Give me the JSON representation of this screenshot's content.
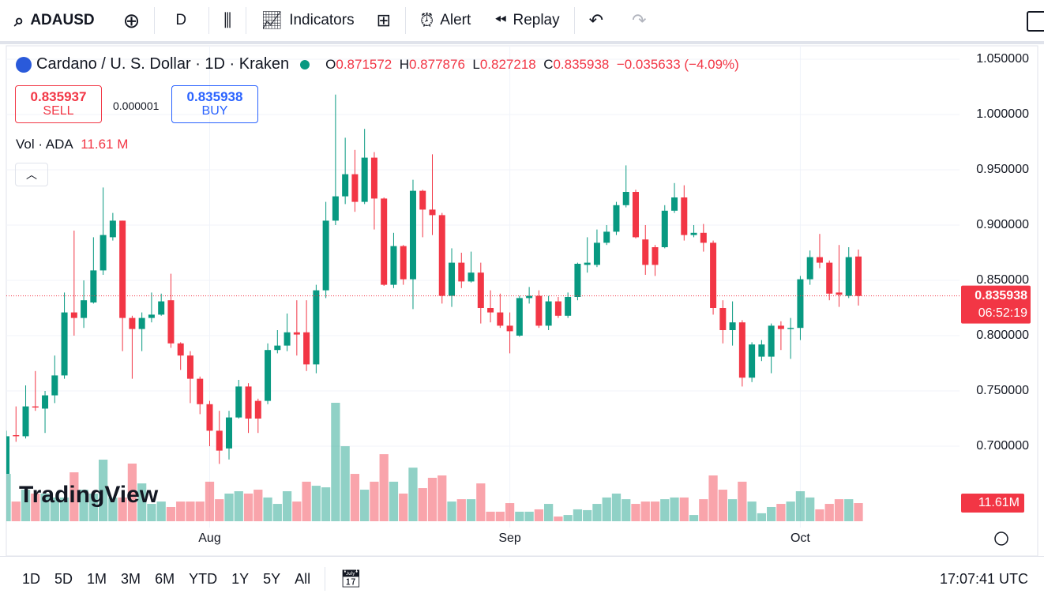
{
  "toolbar": {
    "symbol": "ADAUSD",
    "interval": "D",
    "indicators": "Indicators",
    "alert": "Alert",
    "replay": "Replay"
  },
  "legend": {
    "title": "Cardano / U. S. Dollar · 1D · Kraken",
    "o_label": "O",
    "h_label": "H",
    "l_label": "L",
    "c_label": "C",
    "change": "−0.035633 (−4.09%)",
    "sell_price": "0.835937",
    "sell": "SELL",
    "spread": "0.000001",
    "buy_price": "0.835938",
    "buy": "BUY",
    "volume_label": "Vol · ADA",
    "volume_value": "11.61 M"
  },
  "watermark": "TradingView",
  "chart_data": {
    "type": "candlestick",
    "categories": [
      null,
      null,
      null,
      null,
      null,
      null,
      null,
      null,
      null,
      null,
      null,
      null,
      null,
      null,
      null,
      null,
      null,
      null,
      null,
      null,
      null,
      "Aug",
      null,
      null,
      null,
      null,
      null,
      null,
      null,
      null,
      null,
      null,
      null,
      null,
      null,
      null,
      null,
      null,
      null,
      null,
      null,
      null,
      null,
      null,
      null,
      null,
      null,
      null,
      null,
      null,
      null,
      null,
      "Sep",
      null,
      null,
      null,
      null,
      null,
      null,
      null,
      null,
      null,
      null,
      null,
      null,
      null,
      null,
      null,
      null,
      null,
      null,
      null,
      null,
      null,
      null,
      null,
      null,
      null,
      null,
      null,
      null,
      null,
      "Oct",
      null,
      null,
      null,
      null,
      null,
      null
    ],
    "open": [
      0.675,
      0.71,
      0.709,
      0.736,
      0.734,
      0.746,
      0.764,
      0.821,
      0.816,
      0.83,
      0.859,
      0.889,
      0.904,
      0.816,
      0.806,
      0.816,
      0.819,
      0.832,
      0.793,
      0.782,
      0.761,
      0.738,
      0.714,
      0.698,
      0.726,
      0.754,
      0.741,
      0.741,
      0.787,
      0.791,
      0.803,
      0.803,
      0.774,
      0.841,
      0.904,
      0.926,
      0.946,
      0.921,
      0.961,
      0.924,
      0.846,
      0.881,
      0.851,
      0.931,
      0.914,
      0.909,
      0.836,
      0.866,
      0.849,
      0.857,
      0.825,
      0.821,
      0.809,
      0.8,
      0.834,
      0.836,
      0.809,
      0.831,
      0.818,
      0.835,
      0.864,
      0.864,
      0.884,
      0.894,
      0.918,
      0.93,
      0.887,
      0.88,
      0.88,
      0.913,
      0.925,
      0.891,
      0.893,
      0.884,
      0.825,
      0.805,
      0.812,
      0.762,
      0.781,
      0.781,
      0.809,
      0.806,
      0.807,
      0.851,
      0.871,
      0.866,
      0.839,
      0.836,
      0.871572
    ],
    "high": [
      0.714,
      0.736,
      0.755,
      0.768,
      0.75,
      0.782,
      0.839,
      0.895,
      0.85,
      0.889,
      0.934,
      0.911,
      0.904,
      0.818,
      0.821,
      0.839,
      0.838,
      0.856,
      0.794,
      0.786,
      0.763,
      0.741,
      0.732,
      0.732,
      0.76,
      0.757,
      0.743,
      0.793,
      0.805,
      0.82,
      0.832,
      0.832,
      0.846,
      0.921,
      1.018,
      0.979,
      0.968,
      0.987,
      0.966,
      0.925,
      0.893,
      0.882,
      0.941,
      0.932,
      0.964,
      0.911,
      0.879,
      0.875,
      0.876,
      0.866,
      0.841,
      0.838,
      0.821,
      0.836,
      0.844,
      0.841,
      0.836,
      0.835,
      0.839,
      0.866,
      0.889,
      0.896,
      0.9,
      0.921,
      0.954,
      0.932,
      0.9,
      0.882,
      0.918,
      0.938,
      0.936,
      0.9,
      0.901,
      0.886,
      0.832,
      0.831,
      0.814,
      0.794,
      0.796,
      0.811,
      0.813,
      0.816,
      0.854,
      0.877,
      0.892,
      0.868,
      0.882,
      0.88,
      0.877876
    ],
    "low": [
      0.675,
      0.704,
      0.707,
      0.732,
      0.712,
      0.739,
      0.761,
      0.8,
      0.807,
      0.829,
      0.855,
      0.886,
      0.786,
      0.761,
      0.786,
      0.812,
      0.818,
      0.789,
      0.769,
      0.739,
      0.729,
      0.7,
      0.684,
      0.688,
      0.725,
      0.712,
      0.712,
      0.738,
      0.784,
      0.786,
      0.782,
      0.768,
      0.766,
      0.834,
      0.9,
      0.919,
      0.912,
      0.919,
      0.896,
      0.845,
      0.843,
      0.846,
      0.824,
      0.889,
      0.891,
      0.829,
      0.826,
      0.843,
      0.848,
      0.811,
      0.812,
      0.807,
      0.784,
      0.799,
      0.829,
      0.807,
      0.805,
      0.816,
      0.816,
      0.832,
      0.857,
      0.862,
      0.882,
      0.891,
      0.916,
      0.888,
      0.855,
      0.854,
      0.879,
      0.911,
      0.886,
      0.889,
      0.876,
      0.819,
      0.793,
      0.791,
      0.754,
      0.758,
      0.777,
      0.766,
      0.787,
      0.779,
      0.796,
      0.846,
      0.861,
      0.832,
      0.826,
      0.834,
      0.827218
    ],
    "close": [
      0.709,
      0.709,
      0.736,
      0.735,
      0.746,
      0.764,
      0.821,
      0.816,
      0.832,
      0.859,
      0.891,
      0.904,
      0.816,
      0.806,
      0.816,
      0.819,
      0.831,
      0.793,
      0.782,
      0.761,
      0.738,
      0.714,
      0.696,
      0.726,
      0.754,
      0.725,
      0.725,
      0.787,
      0.791,
      0.803,
      0.801,
      0.774,
      0.841,
      0.904,
      0.926,
      0.946,
      0.921,
      0.961,
      0.924,
      0.846,
      0.881,
      0.851,
      0.931,
      0.914,
      0.909,
      0.836,
      0.866,
      0.849,
      0.857,
      0.825,
      0.821,
      0.809,
      0.804,
      0.834,
      0.836,
      0.809,
      0.831,
      0.818,
      0.835,
      0.865,
      0.866,
      0.884,
      0.894,
      0.918,
      0.93,
      0.889,
      0.864,
      0.864,
      0.913,
      0.925,
      0.891,
      0.893,
      0.884,
      0.825,
      0.805,
      0.812,
      0.762,
      0.792,
      0.792,
      0.809,
      0.806,
      0.807,
      0.851,
      0.871,
      0.866,
      0.838,
      0.837,
      0.871,
      0.835938
    ],
    "volume": [
      30.3,
      12.6,
      20.2,
      17.7,
      17.7,
      15.2,
      15.2,
      31.3,
      20.2,
      17.7,
      39.4,
      15.2,
      15.2,
      36.9,
      24.2,
      11.1,
      12.6,
      9.1,
      12.6,
      12.6,
      12.6,
      25.3,
      14.1,
      17.7,
      19.2,
      17.7,
      20.2,
      15.2,
      11.1,
      19.2,
      12.6,
      25.3,
      22.7,
      21.7,
      75.8,
      48.0,
      30.3,
      20.2,
      25.3,
      42.9,
      25.3,
      17.7,
      34.3,
      21.2,
      27.8,
      29.3,
      12.6,
      14.1,
      14.1,
      24.2,
      6.1,
      6.1,
      11.6,
      6.1,
      6.1,
      7.6,
      11.1,
      3.0,
      4.0,
      7.6,
      7.1,
      11.1,
      15.2,
      17.7,
      14.1,
      11.1,
      12.6,
      12.6,
      14.1,
      15.2,
      15.2,
      4.0,
      14.1,
      29.3,
      20.2,
      14.1,
      25.3,
      12.6,
      5.1,
      9.1,
      11.1,
      12.6,
      19.2,
      15.2,
      7.6,
      11.1,
      14.1,
      14.1,
      11.61
    ],
    "volume_tag": "11.61M",
    "countdown": "06:52:19",
    "up_color": "#089981",
    "down_color": "#f23645",
    "ylim": [
      0.63,
      1.06
    ],
    "yticks": [
      {
        "value": 0.7,
        "label": "0.700000"
      },
      {
        "value": 0.75,
        "label": "0.750000"
      },
      {
        "value": 0.8,
        "label": "0.800000"
      },
      {
        "value": 0.85,
        "label": "0.850000"
      },
      {
        "value": 0.9,
        "label": "0.900000"
      },
      {
        "value": 0.95,
        "label": "0.950000"
      },
      {
        "value": 1.0,
        "label": "1.000000"
      },
      {
        "value": 1.05,
        "label": "1.050000"
      }
    ],
    "grid": true
  },
  "timeframes": [
    "1D",
    "5D",
    "1M",
    "3M",
    "6M",
    "YTD",
    "1Y",
    "5Y",
    "All"
  ],
  "clock": "17:07:41 UTC"
}
